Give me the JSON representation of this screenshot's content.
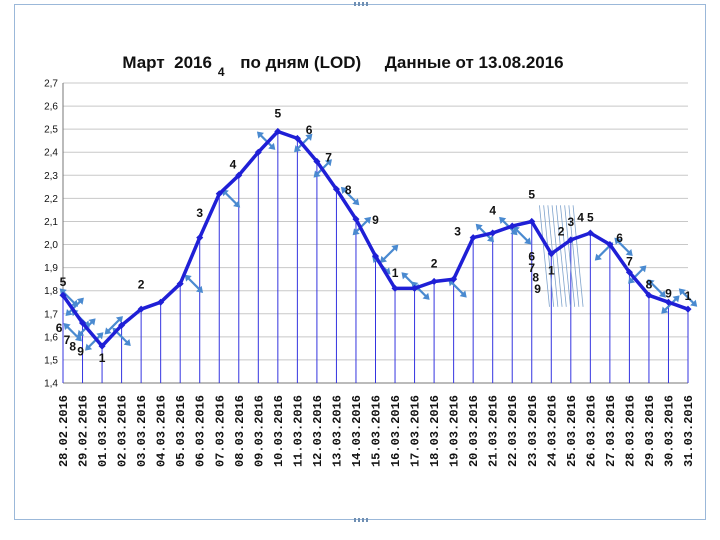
{
  "chart_data": {
    "type": "line",
    "title": "Март  2016      по дням (LOD)     Данные от 13.08.2016",
    "xlabel": "",
    "ylabel": "",
    "ylim": [
      1.4,
      2.7
    ],
    "yticks": [
      "1,4",
      "1,5",
      "1,6",
      "1,7",
      "1,8",
      "1,9",
      "2,0",
      "2,1",
      "2,2",
      "2,3",
      "2,4",
      "2,5",
      "2,6",
      "2,7"
    ],
    "grid": true,
    "x": [
      "28.02.2016",
      "29.02.2016",
      "01.03.2016",
      "02.03.2016",
      "03.03.2016",
      "04.03.2016",
      "05.03.2016",
      "06.03.2016",
      "07.03.2016",
      "08.03.2016",
      "09.03.2016",
      "10.03.2016",
      "11.03.2016",
      "12.03.2016",
      "13.03.2016",
      "14.03.2016",
      "15.03.2016",
      "16.03.2016",
      "17.03.2016",
      "18.03.2016",
      "19.03.2016",
      "20.03.2016",
      "21.03.2016",
      "22.03.2016",
      "23.03.2016",
      "24.03.2016",
      "25.03.2016",
      "26.03.2016",
      "27.03.2016",
      "28.03.2016",
      "29.03.2016",
      "30.03.2016",
      "31.03.2016"
    ],
    "series": [
      {
        "color": "#1f1fd6",
        "values": [
          1.78,
          1.66,
          1.56,
          1.65,
          1.72,
          1.75,
          1.83,
          2.03,
          2.22,
          2.3,
          2.4,
          2.49,
          2.46,
          2.36,
          2.24,
          2.11,
          1.95,
          1.81,
          1.81,
          1.84,
          1.85,
          2.03,
          2.05,
          2.08,
          2.1,
          1.96,
          2.02,
          2.05,
          2.0,
          1.88,
          1.78,
          1.75,
          1.72
        ]
      }
    ],
    "annotations": [
      {
        "text": "5",
        "x": 0,
        "y": 1.82
      },
      {
        "text": "6",
        "x": -0.2,
        "y": 1.62
      },
      {
        "text": "7",
        "x": 0.2,
        "y": 1.57
      },
      {
        "text": "8",
        "x": 0.5,
        "y": 1.54
      },
      {
        "text": "9",
        "x": 0.9,
        "y": 1.52
      },
      {
        "text": "1",
        "x": 2,
        "y": 1.49
      },
      {
        "text": "2",
        "x": 4,
        "y": 1.81
      },
      {
        "text": "3",
        "x": 7,
        "y": 2.12
      },
      {
        "text": "4",
        "x": 8.7,
        "y": 2.33
      },
      {
        "text": "4",
        "x": 8.1,
        "y": 2.73
      },
      {
        "text": "5",
        "x": 11,
        "y": 2.55
      },
      {
        "text": "6",
        "x": 12.6,
        "y": 2.48
      },
      {
        "text": "7",
        "x": 13.6,
        "y": 2.36
      },
      {
        "text": "8",
        "x": 14.6,
        "y": 2.22
      },
      {
        "text": "9",
        "x": 16,
        "y": 2.09
      },
      {
        "text": "1",
        "x": 17,
        "y": 1.86
      },
      {
        "text": "2",
        "x": 19,
        "y": 1.9
      },
      {
        "text": "3",
        "x": 20.2,
        "y": 2.04
      },
      {
        "text": "4",
        "x": 22,
        "y": 2.13
      },
      {
        "text": "5",
        "x": 24,
        "y": 2.2
      },
      {
        "text": "6",
        "x": 24,
        "y": 1.93
      },
      {
        "text": "7",
        "x": 24,
        "y": 1.88
      },
      {
        "text": "8",
        "x": 24.2,
        "y": 1.84
      },
      {
        "text": "9",
        "x": 24.3,
        "y": 1.79
      },
      {
        "text": "1",
        "x": 25,
        "y": 1.87
      },
      {
        "text": "2",
        "x": 25.5,
        "y": 2.04
      },
      {
        "text": "3",
        "x": 26,
        "y": 2.08
      },
      {
        "text": "4",
        "x": 26.5,
        "y": 2.1
      },
      {
        "text": "5",
        "x": 27,
        "y": 2.1
      },
      {
        "text": "6",
        "x": 28.5,
        "y": 2.01
      },
      {
        "text": "7",
        "x": 29,
        "y": 1.91
      },
      {
        "text": "8",
        "x": 30,
        "y": 1.81
      },
      {
        "text": "9",
        "x": 31,
        "y": 1.77
      },
      {
        "text": "1",
        "x": 32,
        "y": 1.76
      }
    ]
  }
}
